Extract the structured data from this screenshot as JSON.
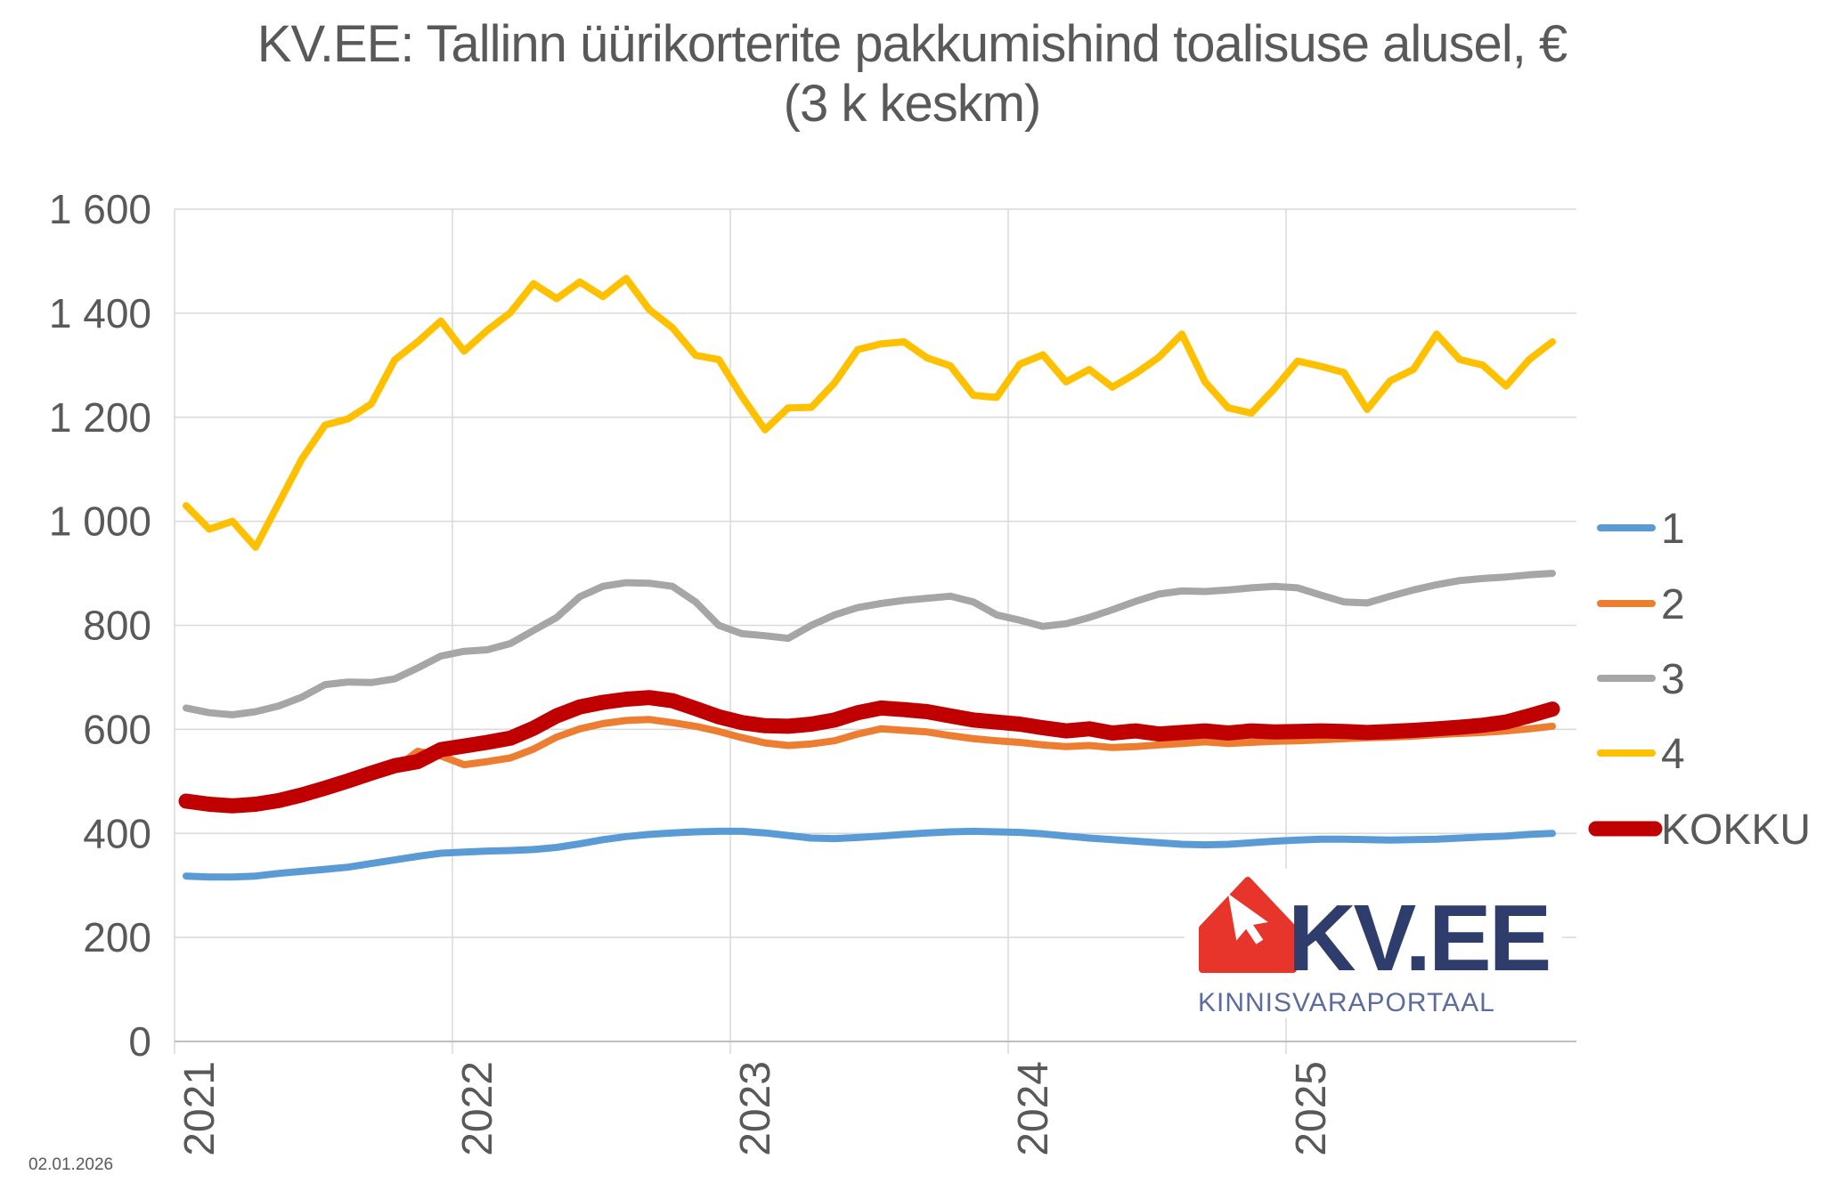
{
  "title": {
    "line1": "KV.EE: Tallinn üürikorterite pakkumishind toalisuse alusel, €",
    "line2": "(3 k keskm)"
  },
  "footer": {
    "date": "02.01.2026"
  },
  "logo": {
    "text": "KV.EE",
    "subtext": "KINNISVARAPORTAAL",
    "house_color": "#E8352B",
    "text_color": "#2E3D6C",
    "subtext_color": "#5C6C9C"
  },
  "axis_colors": {
    "label": "#595959",
    "grid": "#D9D9D9",
    "axis_line": "#BFBFBF"
  },
  "chart_data": {
    "type": "line",
    "title": "KV.EE: Tallinn üürikorterite pakkumishind toalisuse alusel, € (3 k keskm)",
    "x_unit": "month",
    "x_start": "2021-01",
    "x_end": "2025-12",
    "x_tick_labels": [
      "2021",
      "2022",
      "2023",
      "2024",
      "2025"
    ],
    "ylim": [
      0,
      1600
    ],
    "y_tick_step": 200,
    "y_tick_labels": [
      "0",
      "200",
      "400",
      "600",
      "800",
      "1 000",
      "1 200",
      "1 400",
      "1 600"
    ],
    "grid": true,
    "legend_position": "right",
    "series": [
      {
        "name": "1",
        "color": "#5B9BD5",
        "width": 8,
        "values": [
          318,
          316,
          316,
          318,
          323,
          327,
          331,
          335,
          342,
          349,
          356,
          362,
          364,
          366,
          367,
          369,
          373,
          380,
          388,
          394,
          398,
          401,
          403,
          404,
          404,
          401,
          396,
          391,
          390,
          392,
          395,
          398,
          401,
          403,
          404,
          403,
          402,
          399,
          395,
          391,
          388,
          385,
          382,
          379,
          378,
          379,
          382,
          385,
          387,
          389,
          389,
          388,
          387,
          388,
          389,
          391,
          393,
          395,
          398,
          400
        ]
      },
      {
        "name": "2",
        "color": "#ED7D31",
        "width": 8,
        "values": [
          466,
          461,
          458,
          461,
          467,
          475,
          486,
          498,
          510,
          524,
          558,
          549,
          532,
          538,
          545,
          562,
          585,
          601,
          611,
          617,
          619,
          613,
          606,
          596,
          584,
          574,
          569,
          572,
          578,
          591,
          601,
          598,
          595,
          588,
          582,
          578,
          575,
          570,
          567,
          569,
          565,
          567,
          570,
          573,
          576,
          573,
          575,
          577,
          578,
          580,
          582,
          584,
          585,
          587,
          590,
          592,
          594,
          597,
          601,
          606
        ]
      },
      {
        "name": "3",
        "color": "#A6A6A6",
        "width": 8,
        "values": [
          641,
          632,
          628,
          634,
          645,
          662,
          686,
          691,
          690,
          697,
          718,
          741,
          750,
          753,
          765,
          790,
          815,
          855,
          875,
          882,
          881,
          875,
          845,
          800,
          784,
          780,
          775,
          800,
          820,
          834,
          842,
          848,
          852,
          856,
          845,
          820,
          810,
          798,
          803,
          815,
          830,
          846,
          860,
          866,
          865,
          868,
          872,
          875,
          872,
          858,
          845,
          843,
          856,
          868,
          878,
          886,
          890,
          893,
          897,
          900
        ]
      },
      {
        "name": "4",
        "color": "#FFC000",
        "width": 8,
        "values": [
          1030,
          985,
          1000,
          950,
          1035,
          1120,
          1185,
          1197,
          1226,
          1310,
          1345,
          1385,
          1327,
          1367,
          1401,
          1457,
          1428,
          1460,
          1432,
          1467,
          1407,
          1372,
          1319,
          1311,
          1240,
          1176,
          1218,
          1219,
          1266,
          1330,
          1341,
          1345,
          1314,
          1299,
          1242,
          1238,
          1302,
          1320,
          1268,
          1292,
          1258,
          1284,
          1315,
          1360,
          1268,
          1218,
          1208,
          1255,
          1308,
          1298,
          1286,
          1215,
          1270,
          1292,
          1360,
          1311,
          1300,
          1260,
          1311,
          1345
        ]
      },
      {
        "name": "KOKKU",
        "color": "#C00000",
        "width": 17,
        "values": [
          462,
          456,
          453,
          456,
          463,
          474,
          487,
          501,
          516,
          530,
          538,
          561,
          568,
          575,
          583,
          602,
          626,
          643,
          652,
          658,
          661,
          655,
          640,
          624,
          613,
          607,
          606,
          610,
          618,
          632,
          641,
          638,
          634,
          626,
          618,
          614,
          610,
          603,
          597,
          601,
          593,
          597,
          591,
          594,
          597,
          593,
          597,
          595,
          596,
          597,
          596,
          594,
          596,
          598,
          601,
          604,
          608,
          614,
          626,
          639
        ]
      }
    ]
  }
}
